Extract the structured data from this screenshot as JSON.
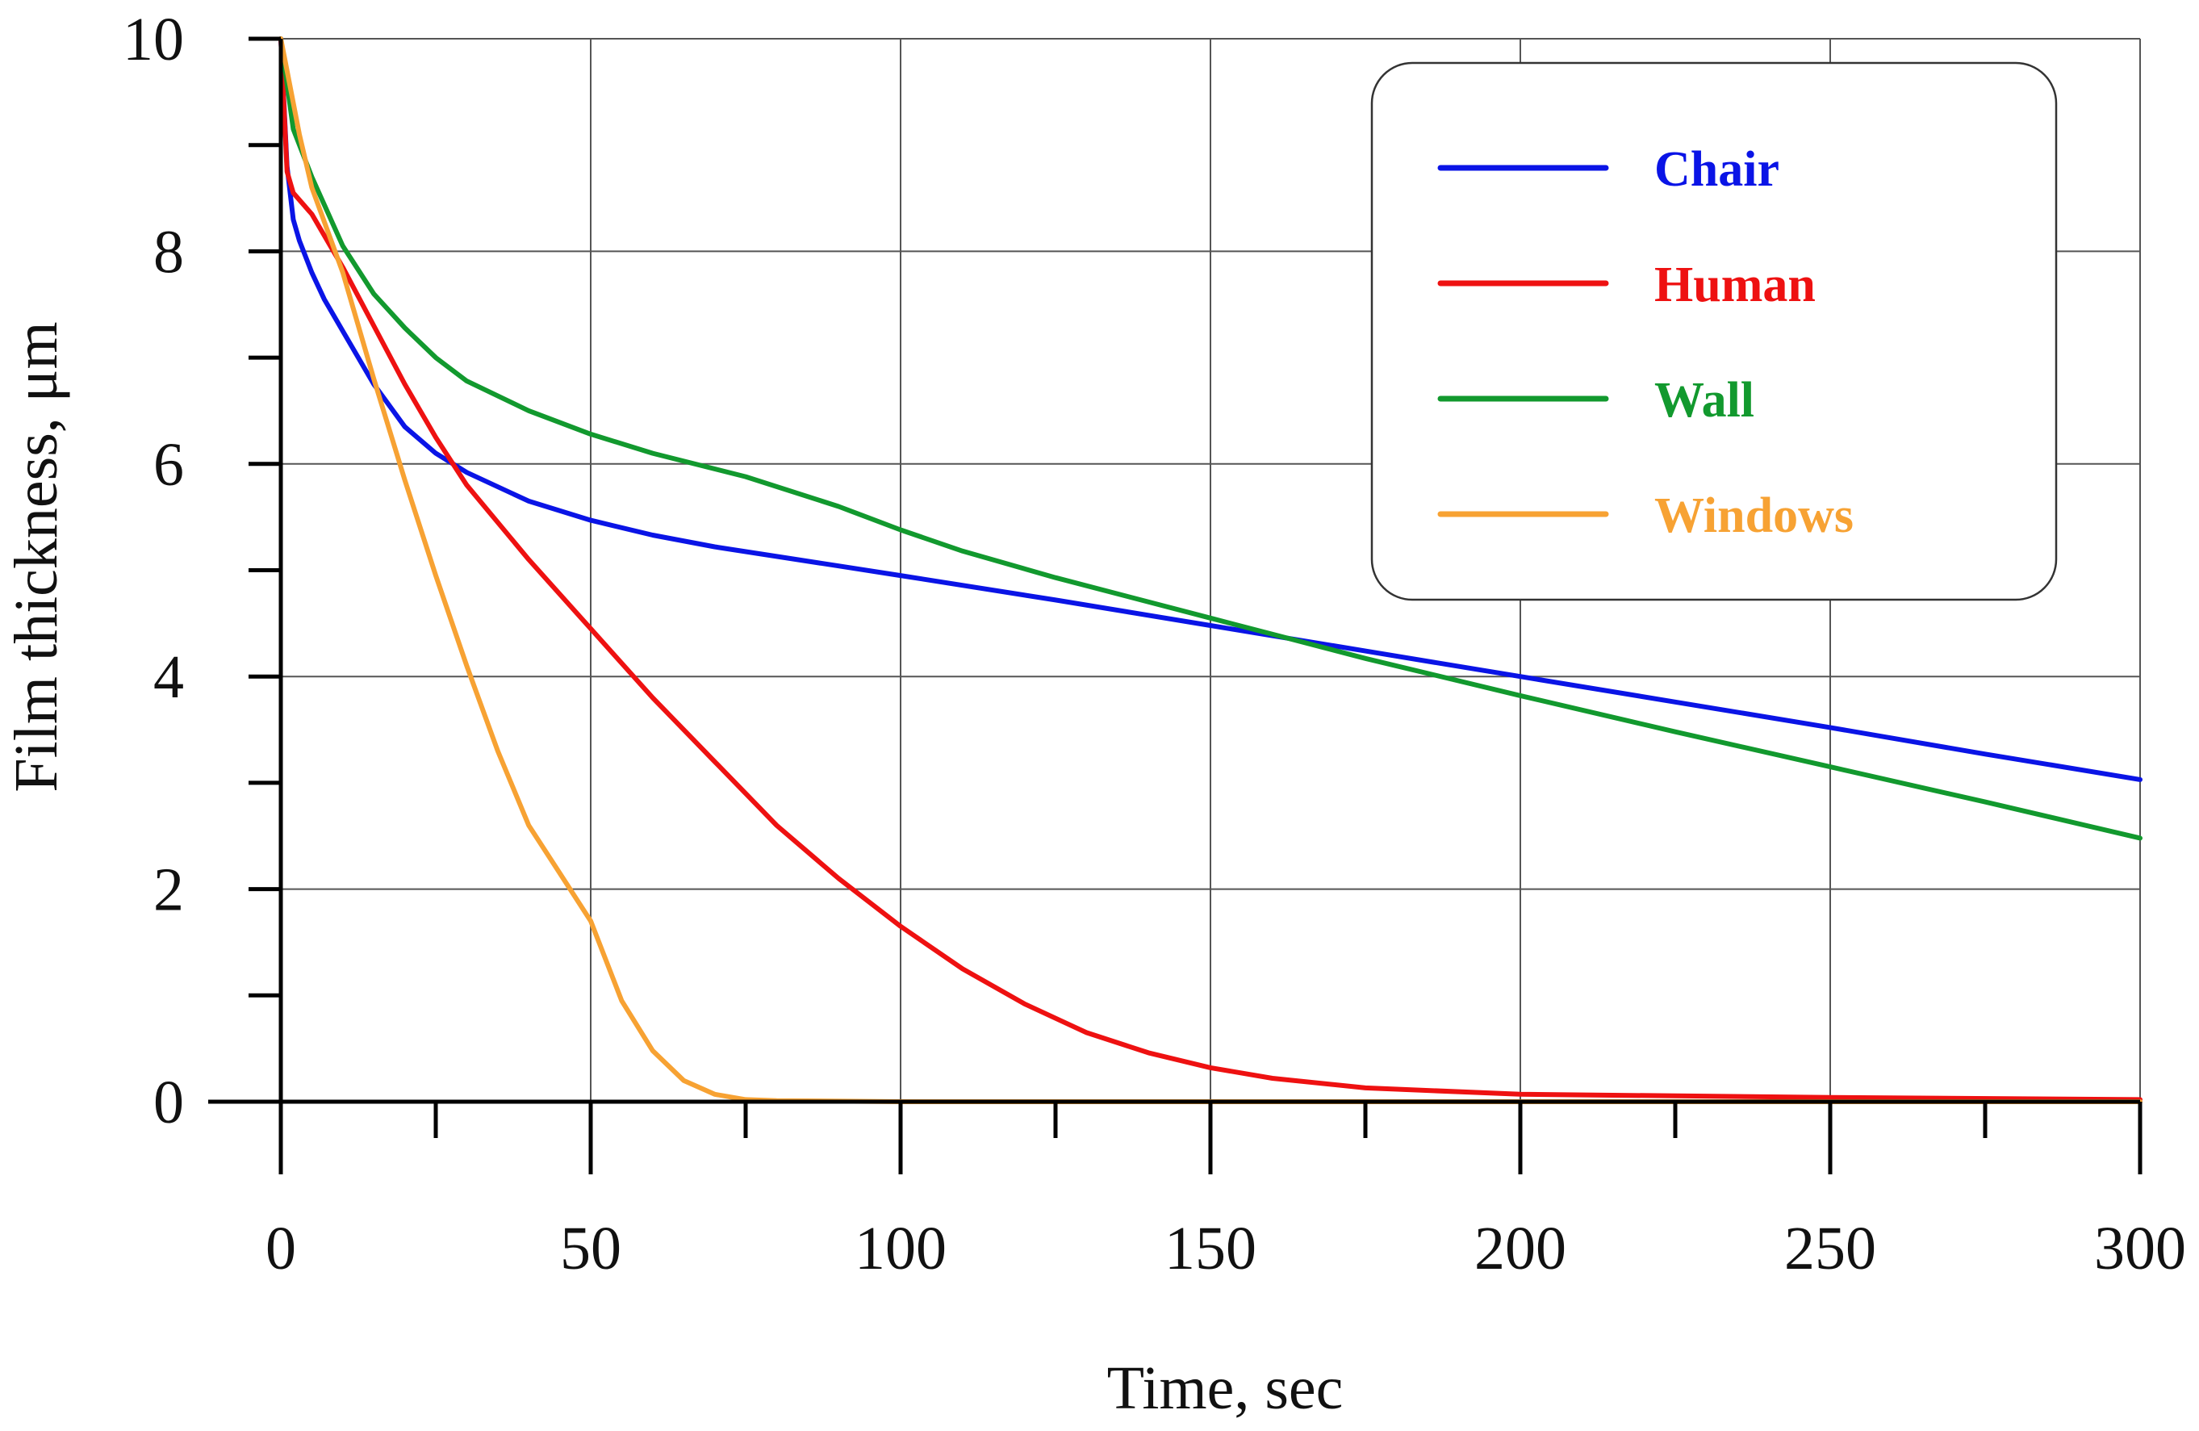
{
  "chart_data": {
    "type": "line",
    "title": "",
    "xlabel": "Time, sec",
    "ylabel": "Film thickness, μm",
    "xlim": [
      0,
      300
    ],
    "ylim": [
      0,
      10
    ],
    "x_ticks": [
      0,
      50,
      100,
      150,
      200,
      250,
      300
    ],
    "x_tick_labels": [
      "0",
      "50",
      "100",
      "150",
      "200",
      "250",
      "300"
    ],
    "x_minor_ticks": [
      25,
      75,
      125,
      175,
      225,
      275
    ],
    "y_ticks": [
      0,
      2,
      4,
      6,
      8,
      10
    ],
    "y_tick_labels": [
      "0",
      "2",
      "4",
      "6",
      "8",
      "10"
    ],
    "y_minor_ticks": [
      1,
      3,
      5,
      7,
      9
    ],
    "grid": true,
    "legend_position": "top-right",
    "series": [
      {
        "name": "Chair",
        "color": "#0a14e6",
        "points": [
          [
            0,
            10
          ],
          [
            1,
            8.8
          ],
          [
            2,
            8.3
          ],
          [
            3,
            8.1
          ],
          [
            5,
            7.8
          ],
          [
            7,
            7.55
          ],
          [
            10,
            7.25
          ],
          [
            15,
            6.75
          ],
          [
            20,
            6.35
          ],
          [
            25,
            6.1
          ],
          [
            30,
            5.92
          ],
          [
            40,
            5.65
          ],
          [
            50,
            5.47
          ],
          [
            60,
            5.33
          ],
          [
            70,
            5.22
          ],
          [
            80,
            5.13
          ],
          [
            90,
            5.04
          ],
          [
            100,
            4.95
          ],
          [
            125,
            4.72
          ],
          [
            150,
            4.48
          ],
          [
            175,
            4.24
          ],
          [
            200,
            4.0
          ],
          [
            225,
            3.76
          ],
          [
            250,
            3.52
          ],
          [
            275,
            3.27
          ],
          [
            300,
            3.03
          ]
        ]
      },
      {
        "name": "Human",
        "color": "#ee1111",
        "points": [
          [
            0,
            10
          ],
          [
            1,
            8.75
          ],
          [
            2,
            8.55
          ],
          [
            5,
            8.35
          ],
          [
            10,
            7.85
          ],
          [
            15,
            7.3
          ],
          [
            20,
            6.75
          ],
          [
            25,
            6.25
          ],
          [
            30,
            5.8
          ],
          [
            40,
            5.1
          ],
          [
            50,
            4.45
          ],
          [
            60,
            3.8
          ],
          [
            70,
            3.2
          ],
          [
            80,
            2.6
          ],
          [
            90,
            2.1
          ],
          [
            100,
            1.65
          ],
          [
            110,
            1.25
          ],
          [
            120,
            0.92
          ],
          [
            130,
            0.65
          ],
          [
            140,
            0.46
          ],
          [
            150,
            0.32
          ],
          [
            160,
            0.22
          ],
          [
            175,
            0.13
          ],
          [
            200,
            0.07
          ],
          [
            250,
            0.04
          ],
          [
            300,
            0.02
          ]
        ]
      },
      {
        "name": "Wall",
        "color": "#12992e",
        "points": [
          [
            0,
            10
          ],
          [
            2,
            9.15
          ],
          [
            5,
            8.7
          ],
          [
            10,
            8.05
          ],
          [
            15,
            7.6
          ],
          [
            20,
            7.28
          ],
          [
            25,
            7.0
          ],
          [
            30,
            6.78
          ],
          [
            40,
            6.5
          ],
          [
            50,
            6.28
          ],
          [
            60,
            6.1
          ],
          [
            75,
            5.88
          ],
          [
            90,
            5.6
          ],
          [
            100,
            5.38
          ],
          [
            110,
            5.18
          ],
          [
            125,
            4.93
          ],
          [
            150,
            4.55
          ],
          [
            175,
            4.17
          ],
          [
            200,
            3.82
          ],
          [
            225,
            3.48
          ],
          [
            250,
            3.15
          ],
          [
            275,
            2.82
          ],
          [
            300,
            2.48
          ]
        ]
      },
      {
        "name": "Windows",
        "color": "#f7a233",
        "points": [
          [
            0,
            10
          ],
          [
            1,
            9.7
          ],
          [
            3,
            9.1
          ],
          [
            5,
            8.6
          ],
          [
            10,
            7.8
          ],
          [
            15,
            6.8
          ],
          [
            20,
            5.85
          ],
          [
            25,
            4.95
          ],
          [
            30,
            4.1
          ],
          [
            35,
            3.3
          ],
          [
            40,
            2.6
          ],
          [
            45,
            2.15
          ],
          [
            50,
            1.7
          ],
          [
            55,
            0.95
          ],
          [
            60,
            0.48
          ],
          [
            65,
            0.2
          ],
          [
            70,
            0.07
          ],
          [
            75,
            0.02
          ],
          [
            80,
            0.01
          ],
          [
            100,
            0.0
          ],
          [
            300,
            0.0
          ]
        ]
      }
    ]
  }
}
